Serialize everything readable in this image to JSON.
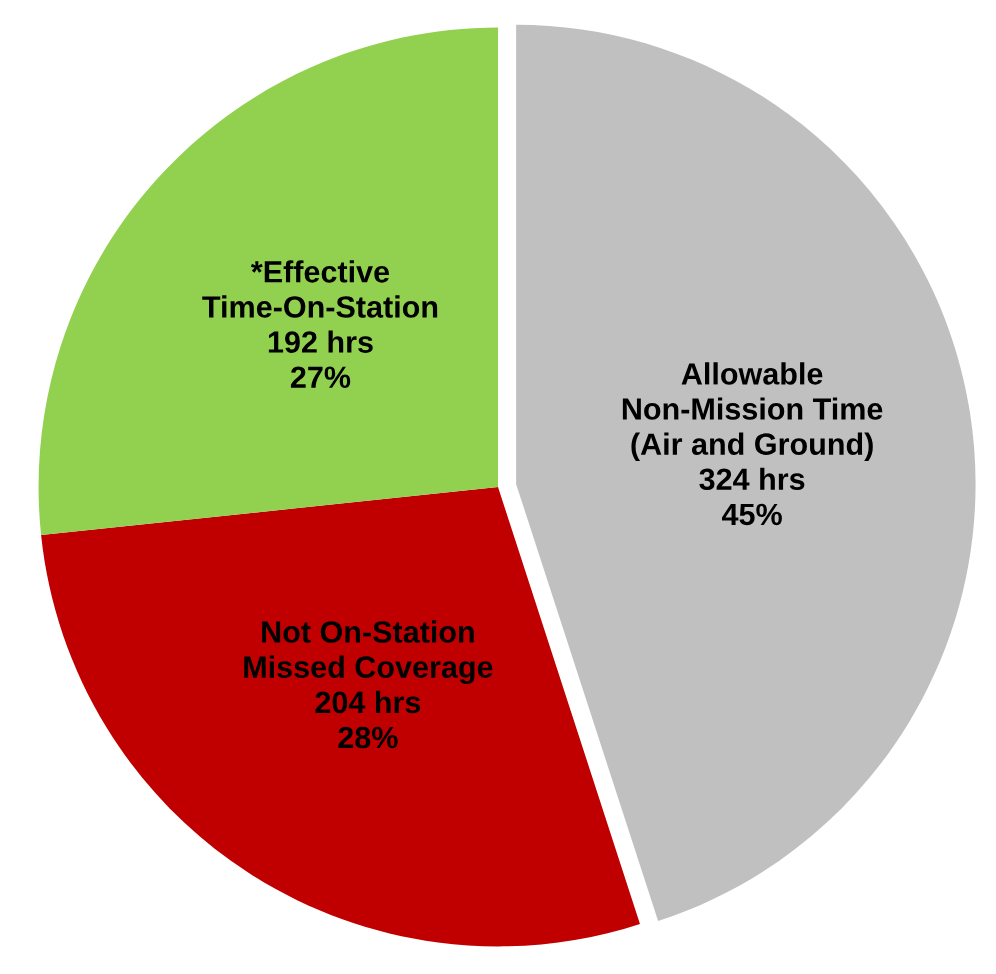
{
  "chart_data": {
    "type": "pie",
    "categories": [
      "Allowable\nNon-Mission Time\n(Air and Ground)",
      "Not On-Station\nMissed Coverage",
      "*Effective\nTime-On-Station"
    ],
    "values": [
      324,
      204,
      192
    ],
    "value_labels": [
      "324 hrs\n45%",
      "204 hrs\n28%",
      "192 hrs\n27%"
    ],
    "colors": [
      "#c0c0c0",
      "#c00000",
      "#92d050"
    ],
    "legend": false
  }
}
